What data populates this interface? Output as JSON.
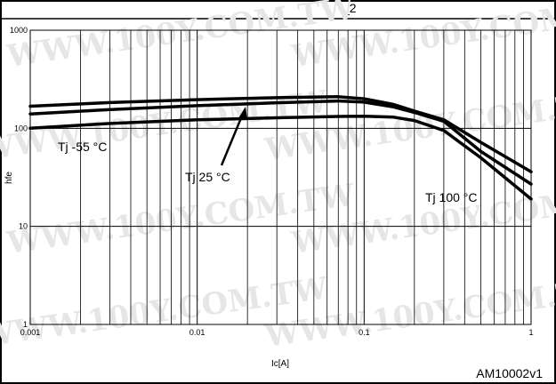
{
  "watermark": "WWW.100Y.COM.TW",
  "header_fragment": "_2",
  "figure_code": "AM10002v1",
  "chart_data": {
    "type": "line",
    "title": "",
    "xlabel": "Ic[A]",
    "ylabel": "hfe",
    "xscale": "log",
    "yscale": "log",
    "xlim": [
      0.001,
      1
    ],
    "ylim": [
      1,
      1000
    ],
    "grid": true,
    "x_tick_labels": [
      "0.001",
      "0.01",
      "0.1",
      "1"
    ],
    "y_tick_labels": [
      "1",
      "10",
      "100",
      "1000"
    ],
    "series": [
      {
        "name": "Tj 100 °C",
        "x": [
          0.001,
          0.003,
          0.01,
          0.03,
          0.07,
          0.1,
          0.15,
          0.2,
          0.3,
          0.5,
          1
        ],
        "values": [
          168,
          183,
          196,
          205,
          210,
          200,
          175,
          150,
          122,
          72,
          36
        ]
      },
      {
        "name": "Tj 25 °C",
        "x": [
          0.001,
          0.003,
          0.01,
          0.03,
          0.07,
          0.1,
          0.15,
          0.2,
          0.3,
          0.5,
          1
        ],
        "values": [
          140,
          155,
          170,
          182,
          190,
          185,
          165,
          145,
          118,
          58,
          27
        ]
      },
      {
        "name": "Tj -55 °C",
        "x": [
          0.001,
          0.003,
          0.01,
          0.03,
          0.07,
          0.1,
          0.15,
          0.2,
          0.3,
          0.5,
          1
        ],
        "values": [
          100,
          112,
          122,
          128,
          132,
          133,
          130,
          120,
          95,
          50,
          19
        ]
      }
    ],
    "annotations": [
      {
        "label": "Tj -55 °C"
      },
      {
        "label": "Tj 25 °C"
      },
      {
        "label": "Tj 100 °C"
      }
    ]
  }
}
